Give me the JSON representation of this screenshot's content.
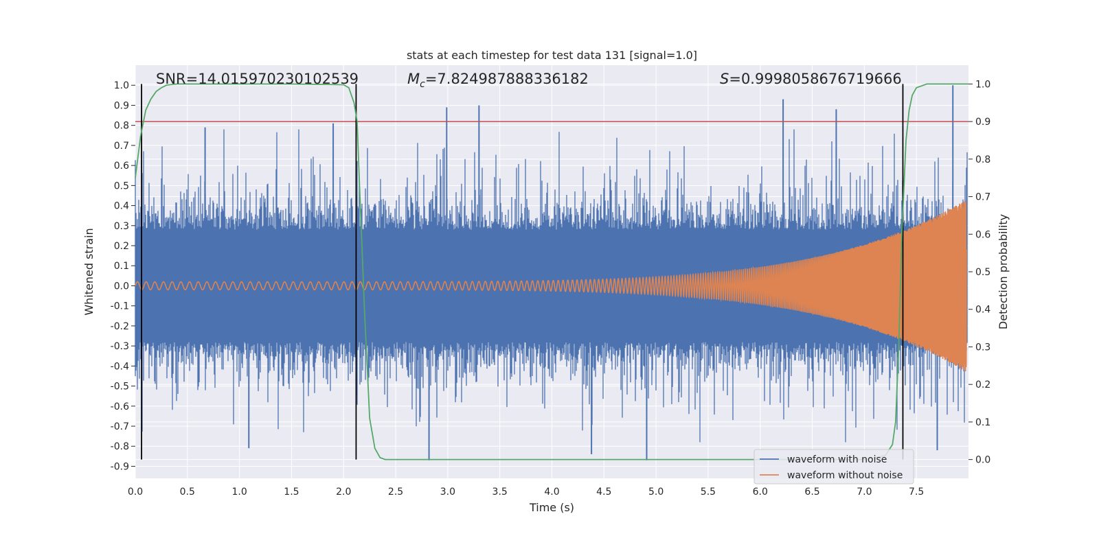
{
  "chart_data": {
    "type": "line",
    "title": "stats at each timestep for test data 131 [signal=1.0]",
    "xlabel": "Time (s)",
    "ylabel_left": "Whitened strain",
    "ylabel_right": "Detection probability",
    "xlim": [
      0.0,
      8.0
    ],
    "ylim_left": [
      -0.96,
      1.1
    ],
    "ylim_right": [
      -0.05,
      1.05
    ],
    "x_ticks": [
      "0.0",
      "0.5",
      "1.0",
      "1.5",
      "2.0",
      "2.5",
      "3.0",
      "3.5",
      "4.0",
      "4.5",
      "5.0",
      "5.5",
      "6.0",
      "6.5",
      "7.0",
      "7.5"
    ],
    "y_left_ticks": [
      "1.0",
      "0.9",
      "0.8",
      "0.7",
      "0.6",
      "0.5",
      "0.4",
      "0.3",
      "0.2",
      "0.1",
      "0.0",
      "-0.1",
      "-0.2",
      "-0.3",
      "-0.4",
      "-0.5",
      "-0.6",
      "-0.7",
      "-0.8",
      "-0.9"
    ],
    "y_right_ticks": [
      "1.0",
      "0.9",
      "0.8",
      "0.7",
      "0.6",
      "0.5",
      "0.4",
      "0.3",
      "0.2",
      "0.1",
      "0.0"
    ],
    "grid": true,
    "legend_position": "lower-right",
    "annotations": {
      "snr": "SNR=14.015970230102539",
      "mc_symbol": "M",
      "mc_subscript": "c",
      "mc_value": "=7.824987888336182",
      "s_symbol": "S",
      "s_value": "=0.9998058676719666"
    },
    "series": [
      {
        "name": "waveform with noise",
        "color": "#4c72b0",
        "axis": "left",
        "description_envelope": {
          "x": [
            0.0,
            8.0
          ],
          "band_approx": [
            -0.3,
            0.3
          ],
          "notable_peaks": [
            {
              "x": 0.67,
              "y": 0.79
            },
            {
              "x": 1.9,
              "y": 0.81
            },
            {
              "x": 2.99,
              "y": 0.89
            },
            {
              "x": 3.3,
              "y": 0.9
            },
            {
              "x": 6.22,
              "y": 0.93
            },
            {
              "x": 6.73,
              "y": 0.88
            },
            {
              "x": 7.85,
              "y": 1.0
            },
            {
              "x": 2.82,
              "y": -0.87
            },
            {
              "x": 4.91,
              "y": -0.87
            },
            {
              "x": 1.09,
              "y": -0.81
            },
            {
              "x": 4.38,
              "y": -0.84
            },
            {
              "x": 7.7,
              "y": -0.82
            }
          ]
        }
      },
      {
        "name": "waveform without noise",
        "color": "#dd8452",
        "axis": "left",
        "chirp": {
          "f_start_hz": 12,
          "f_end_hz": 150,
          "amp_start": 0.02,
          "amp_end": 0.43
        }
      },
      {
        "name": "",
        "color": "#55a868",
        "axis": "right",
        "x": [
          0.0,
          0.05,
          0.1,
          0.15,
          0.2,
          0.25,
          0.3,
          0.4,
          0.6,
          1.0,
          1.5,
          2.0,
          2.05,
          2.1,
          2.13,
          2.15,
          2.2,
          2.25,
          2.3,
          2.35,
          2.4,
          2.6,
          3.0,
          4.0,
          5.0,
          6.0,
          7.0,
          7.2,
          7.27,
          7.3,
          7.33,
          7.36,
          7.4,
          7.43,
          7.46,
          7.5,
          7.6,
          8.0
        ],
        "y": [
          0.75,
          0.86,
          0.93,
          0.96,
          0.98,
          0.99,
          0.997,
          1.0,
          1.0,
          1.0,
          1.0,
          0.998,
          0.99,
          0.95,
          0.9,
          0.75,
          0.4,
          0.11,
          0.03,
          0.005,
          0.0,
          0.0,
          0.0,
          0.0,
          0.0,
          0.0,
          0.0,
          0.01,
          0.04,
          0.1,
          0.3,
          0.6,
          0.85,
          0.93,
          0.97,
          0.99,
          1.0,
          1.0
        ]
      }
    ],
    "reference_lines": {
      "horizontal_red_at_probability": 0.9,
      "horizontal_red_color": "#c44e52",
      "vertical_black_at_time": [
        0.06,
        2.12,
        7.37
      ]
    }
  }
}
